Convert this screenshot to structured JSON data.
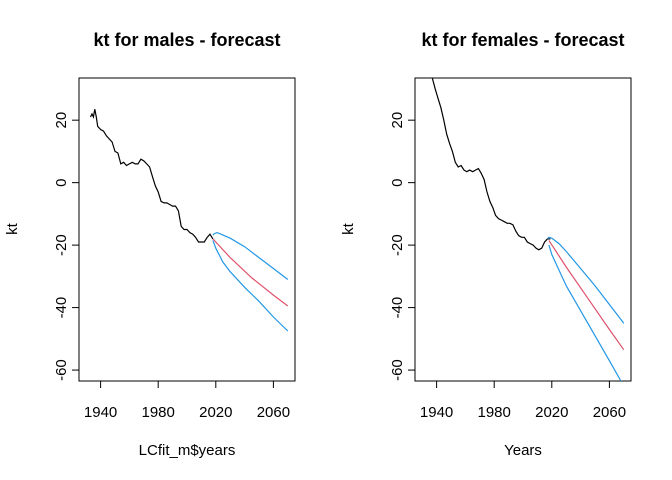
{
  "chart_data": [
    {
      "type": "line",
      "title": "kt for males - forecast",
      "xlabel": "LCfit_m$years",
      "ylabel": "kt",
      "xlim": [
        1925,
        2075
      ],
      "ylim": [
        -63.5,
        33.5
      ],
      "xticks": [
        1940,
        1980,
        2020,
        2060
      ],
      "yticks": [
        20,
        0,
        -20,
        -40,
        -60
      ],
      "grid": false,
      "series": [
        {
          "color": "#000000",
          "x": [
            1933,
            1934,
            1935,
            1936,
            1937,
            1938,
            1940,
            1942,
            1944,
            1946,
            1948,
            1950,
            1952,
            1954,
            1956,
            1958,
            1960,
            1962,
            1964,
            1966,
            1968,
            1970,
            1972,
            1974,
            1976,
            1978,
            1980,
            1982,
            1984,
            1986,
            1988,
            1990,
            1992,
            1994,
            1996,
            1998,
            2000,
            2002,
            2004,
            2006,
            2008,
            2010,
            2012,
            2014,
            2016,
            2018
          ],
          "y": [
            21,
            22,
            21,
            23.5,
            21,
            18,
            17,
            16.5,
            15,
            14,
            13,
            10,
            9.5,
            6,
            6.5,
            5.5,
            6,
            6.5,
            6,
            6,
            7.5,
            7,
            6,
            5,
            2,
            -1,
            -3,
            -6,
            -6.5,
            -6.5,
            -7,
            -7.5,
            -7.5,
            -9,
            -14,
            -15,
            -15,
            -16,
            -16.5,
            -17.5,
            -19,
            -19,
            -19,
            -17.5,
            -16.5,
            -18
          ]
        },
        {
          "color": "#df536b",
          "x": [
            2018,
            2030,
            2045,
            2060,
            2070
          ],
          "y": [
            -18,
            -24,
            -30.5,
            -36,
            -39.5
          ]
        },
        {
          "color": "#2297e6",
          "x": [
            2018,
            2019,
            2021,
            2025,
            2030,
            2040,
            2050,
            2060,
            2070
          ],
          "y": [
            -16.8,
            -16.3,
            -16,
            -16.8,
            -17.8,
            -20.5,
            -24,
            -27.5,
            -31
          ]
        },
        {
          "color": "#2297e6",
          "x": [
            2018,
            2020,
            2025,
            2030,
            2040,
            2050,
            2060,
            2070
          ],
          "y": [
            -18.5,
            -21,
            -25.5,
            -28.5,
            -33.5,
            -38,
            -43,
            -47.5
          ]
        }
      ]
    },
    {
      "type": "line",
      "title": "kt for females - forecast",
      "xlabel": "Years",
      "ylabel": "kt",
      "xlim": [
        1925,
        2075
      ],
      "ylim": [
        -63.5,
        33.5
      ],
      "xticks": [
        1940,
        1980,
        2020,
        2060
      ],
      "yticks": [
        20,
        0,
        -20,
        -40,
        -60
      ],
      "grid": false,
      "series": [
        {
          "color": "#000000",
          "x": [
            1937,
            1939,
            1941,
            1943,
            1945,
            1947,
            1949,
            1951,
            1953,
            1955,
            1957,
            1959,
            1961,
            1963,
            1965,
            1967,
            1969,
            1971,
            1973,
            1975,
            1977,
            1979,
            1981,
            1983,
            1985,
            1987,
            1989,
            1991,
            1993,
            1995,
            1997,
            1999,
            2001,
            2003,
            2005,
            2007,
            2009,
            2011,
            2013,
            2015,
            2017,
            2019
          ],
          "y": [
            33.5,
            30,
            27,
            24,
            20,
            15.5,
            12.5,
            10,
            6.5,
            5,
            5.5,
            4,
            3.5,
            4,
            3.5,
            4,
            4.5,
            3,
            1,
            -3,
            -6,
            -8,
            -10.5,
            -11.5,
            -12,
            -12.5,
            -13,
            -13,
            -13.5,
            -15.5,
            -17,
            -17.5,
            -17.5,
            -19,
            -19.5,
            -20,
            -21,
            -21.5,
            -21,
            -19,
            -18,
            -18
          ]
        },
        {
          "color": "#df536b",
          "x": [
            2018,
            2030,
            2045,
            2060,
            2070
          ],
          "y": [
            -18.5,
            -27,
            -37,
            -47,
            -53.5
          ]
        },
        {
          "color": "#2297e6",
          "x": [
            2017,
            2018,
            2020,
            2025,
            2030,
            2040,
            2050,
            2060,
            2070
          ],
          "y": [
            -18,
            -17.5,
            -17.8,
            -19.5,
            -22,
            -27.5,
            -33,
            -39,
            -45
          ]
        },
        {
          "color": "#2297e6",
          "x": [
            2018,
            2020,
            2025,
            2030,
            2040,
            2050,
            2060,
            2068
          ],
          "y": [
            -20,
            -23,
            -28,
            -33,
            -41,
            -49,
            -57,
            -63.5
          ]
        }
      ]
    }
  ]
}
